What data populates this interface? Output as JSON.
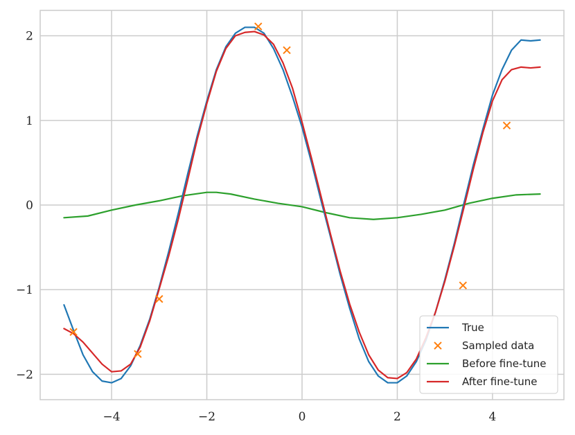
{
  "chart_data": {
    "type": "line",
    "xlim": [
      -5.5,
      5.5
    ],
    "ylim": [
      -2.3,
      2.3
    ],
    "xticks": [
      -4,
      -2,
      0,
      2,
      4
    ],
    "xtick_labels": [
      "−4",
      "−2",
      "0",
      "2",
      "4"
    ],
    "yticks": [
      -2,
      -1,
      0,
      1,
      2
    ],
    "ytick_labels": [
      "−2",
      "−1",
      "0",
      "1",
      "2"
    ],
    "grid": true,
    "legend_position": "lower-right",
    "series": [
      {
        "name": "True",
        "style": "line",
        "color": "#1f77b4",
        "x": [
          -5.0,
          -4.8,
          -4.6,
          -4.4,
          -4.2,
          -4.0,
          -3.8,
          -3.6,
          -3.4,
          -3.2,
          -3.0,
          -2.8,
          -2.6,
          -2.4,
          -2.2,
          -2.0,
          -1.8,
          -1.6,
          -1.4,
          -1.2,
          -1.0,
          -0.8,
          -0.6,
          -0.4,
          -0.2,
          0.0,
          0.2,
          0.4,
          0.6,
          0.8,
          1.0,
          1.2,
          1.4,
          1.6,
          1.8,
          2.0,
          2.2,
          2.4,
          2.6,
          2.8,
          3.0,
          3.2,
          3.4,
          3.6,
          3.8,
          4.0,
          4.2,
          4.4,
          4.6,
          4.8,
          5.0
        ],
        "y": [
          -1.18,
          -1.48,
          -1.77,
          -1.97,
          -2.08,
          -2.1,
          -2.05,
          -1.9,
          -1.66,
          -1.35,
          -0.97,
          -0.55,
          -0.1,
          0.37,
          0.82,
          1.23,
          1.6,
          1.87,
          2.03,
          2.1,
          2.1,
          2.03,
          1.85,
          1.6,
          1.28,
          0.92,
          0.5,
          0.05,
          -0.38,
          -0.82,
          -1.22,
          -1.58,
          -1.85,
          -2.02,
          -2.1,
          -2.1,
          -2.02,
          -1.85,
          -1.6,
          -1.27,
          -0.88,
          -0.45,
          0.02,
          0.48,
          0.9,
          1.3,
          1.6,
          1.83,
          1.95,
          1.94,
          1.95
        ]
      },
      {
        "name": "Sampled data",
        "style": "marker",
        "color": "#ff7f0e",
        "x": [
          -4.8,
          -3.45,
          -3.0,
          -0.92,
          -0.32,
          3.38,
          4.3
        ],
        "y": [
          -1.5,
          -1.76,
          -1.11,
          2.11,
          1.83,
          -0.95,
          0.94
        ]
      },
      {
        "name": "Before fine-tune",
        "style": "line",
        "color": "#2ca02c",
        "x": [
          -5.0,
          -4.5,
          -4.0,
          -3.5,
          -3.0,
          -2.5,
          -2.0,
          -1.8,
          -1.5,
          -1.0,
          -0.5,
          0.0,
          0.5,
          1.0,
          1.5,
          2.0,
          2.5,
          3.0,
          3.5,
          4.0,
          4.5,
          5.0
        ],
        "y": [
          -0.15,
          -0.13,
          -0.06,
          0.0,
          0.05,
          0.11,
          0.15,
          0.15,
          0.13,
          0.07,
          0.02,
          -0.02,
          -0.09,
          -0.15,
          -0.17,
          -0.15,
          -0.11,
          -0.06,
          0.02,
          0.08,
          0.12,
          0.13
        ]
      },
      {
        "name": "After fine-tune",
        "style": "line",
        "color": "#d62728",
        "x": [
          -5.0,
          -4.8,
          -4.6,
          -4.4,
          -4.2,
          -4.0,
          -3.8,
          -3.6,
          -3.4,
          -3.2,
          -3.0,
          -2.8,
          -2.6,
          -2.4,
          -2.2,
          -2.0,
          -1.8,
          -1.6,
          -1.4,
          -1.2,
          -1.0,
          -0.8,
          -0.6,
          -0.4,
          -0.2,
          0.0,
          0.2,
          0.4,
          0.6,
          0.8,
          1.0,
          1.2,
          1.4,
          1.6,
          1.8,
          2.0,
          2.2,
          2.4,
          2.6,
          2.8,
          3.0,
          3.2,
          3.4,
          3.6,
          3.8,
          4.0,
          4.2,
          4.4,
          4.6,
          4.8,
          5.0
        ],
        "y": [
          -1.46,
          -1.52,
          -1.62,
          -1.75,
          -1.88,
          -1.97,
          -1.96,
          -1.88,
          -1.68,
          -1.37,
          -0.99,
          -0.6,
          -0.17,
          0.3,
          0.78,
          1.2,
          1.58,
          1.85,
          2.0,
          2.04,
          2.05,
          2.01,
          1.9,
          1.68,
          1.38,
          0.98,
          0.55,
          0.1,
          -0.35,
          -0.78,
          -1.17,
          -1.5,
          -1.77,
          -1.95,
          -2.04,
          -2.05,
          -1.98,
          -1.82,
          -1.57,
          -1.27,
          -0.9,
          -0.48,
          -0.03,
          0.43,
          0.86,
          1.23,
          1.48,
          1.6,
          1.63,
          1.62,
          1.63
        ]
      }
    ]
  }
}
